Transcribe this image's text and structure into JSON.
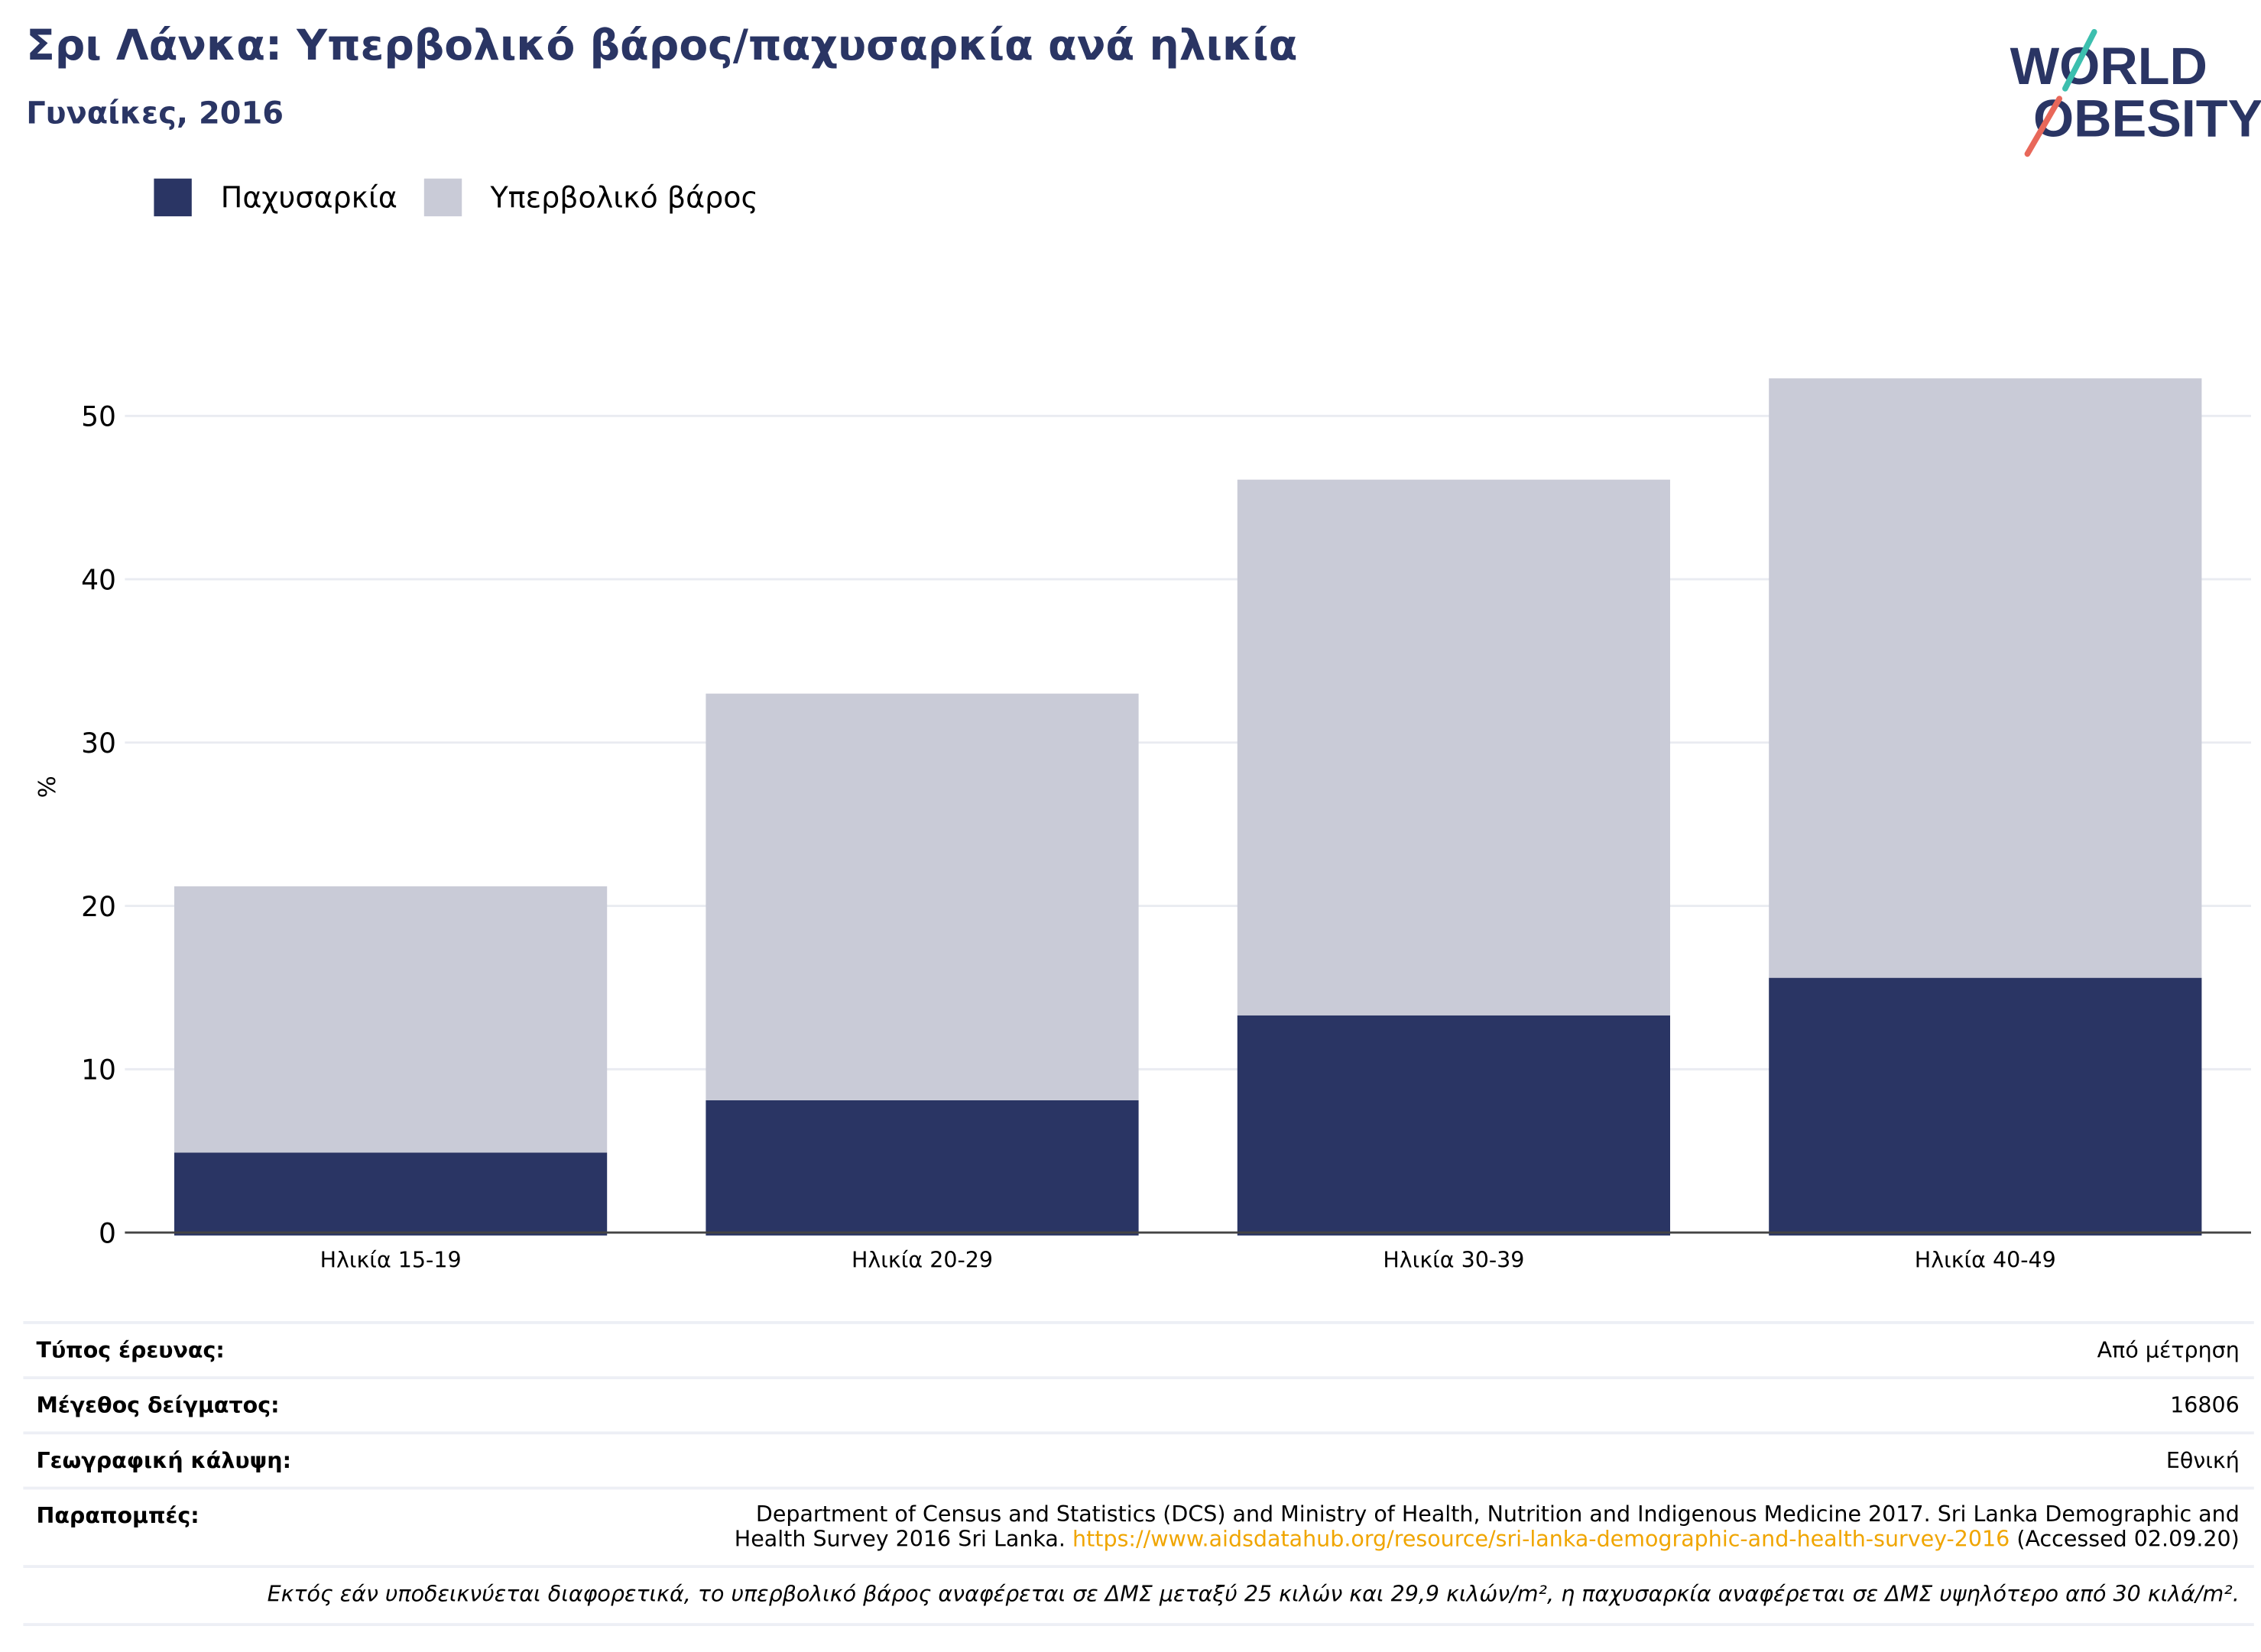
{
  "header": {
    "title": "Σρι Λάνκα: Υπερβολικό βάρος/παχυσαρκία ανά ηλικία",
    "subtitle": "Γυναίκες, 2016"
  },
  "logo": {
    "line1": "WORLD",
    "line2": "OBESITY"
  },
  "legend": {
    "items": [
      {
        "label": "Παχυσαρκία",
        "color": "#2a3564"
      },
      {
        "label": "Υπερβολικό βάρος",
        "color": "#c9cbd7"
      }
    ]
  },
  "chart_data": {
    "type": "bar",
    "stacked": true,
    "categories": [
      "Ηλικία 15-19",
      "Ηλικία 20-29",
      "Ηλικία 30-39",
      "Ηλικία 40-49"
    ],
    "series": [
      {
        "name": "Παχυσαρκία",
        "color": "#2a3564",
        "values": [
          4.9,
          8.1,
          13.3,
          15.6
        ]
      },
      {
        "name": "Υπερβολικό βάρος",
        "color": "#c9cbd7",
        "values": [
          16.3,
          24.9,
          32.8,
          36.7
        ]
      }
    ],
    "ylabel": "%",
    "ylim": [
      0,
      55
    ],
    "yticks": [
      0,
      10,
      20,
      30,
      40,
      50
    ],
    "grid": true,
    "legend_position": "top-left"
  },
  "info": {
    "survey_type": {
      "label": "Τύπος έρευνας:",
      "value": "Από μέτρηση"
    },
    "sample_size": {
      "label": "Μέγεθος δείγματος:",
      "value": "16806"
    },
    "coverage": {
      "label": "Γεωγραφική κάλυψη:",
      "value": "Εθνική"
    },
    "references": {
      "label": "Παραπομπές:",
      "text_line1": "Department of Census and Statistics (DCS) and Ministry of Health, Nutrition and Indigenous Medicine 2017. Sri Lanka Demographic and",
      "text_line2": "Health Survey 2016 Sri Lanka.",
      "link": "https://www.aidsdatahub.org/resource/sri-lanka-demographic-and-health-survey-2016",
      "accessed": "(Accessed 02.09.20)"
    },
    "footnote": "Εκτός εάν υποδεικνύεται διαφορετικά, το υπερβολικό βάρος αναφέρεται σε ΔΜΣ μεταξύ 25 κιλών και 29,9 κιλών/m², η παχυσαρκία αναφέρεται σε ΔΜΣ υψηλότερο από 30 κιλά/m²."
  }
}
